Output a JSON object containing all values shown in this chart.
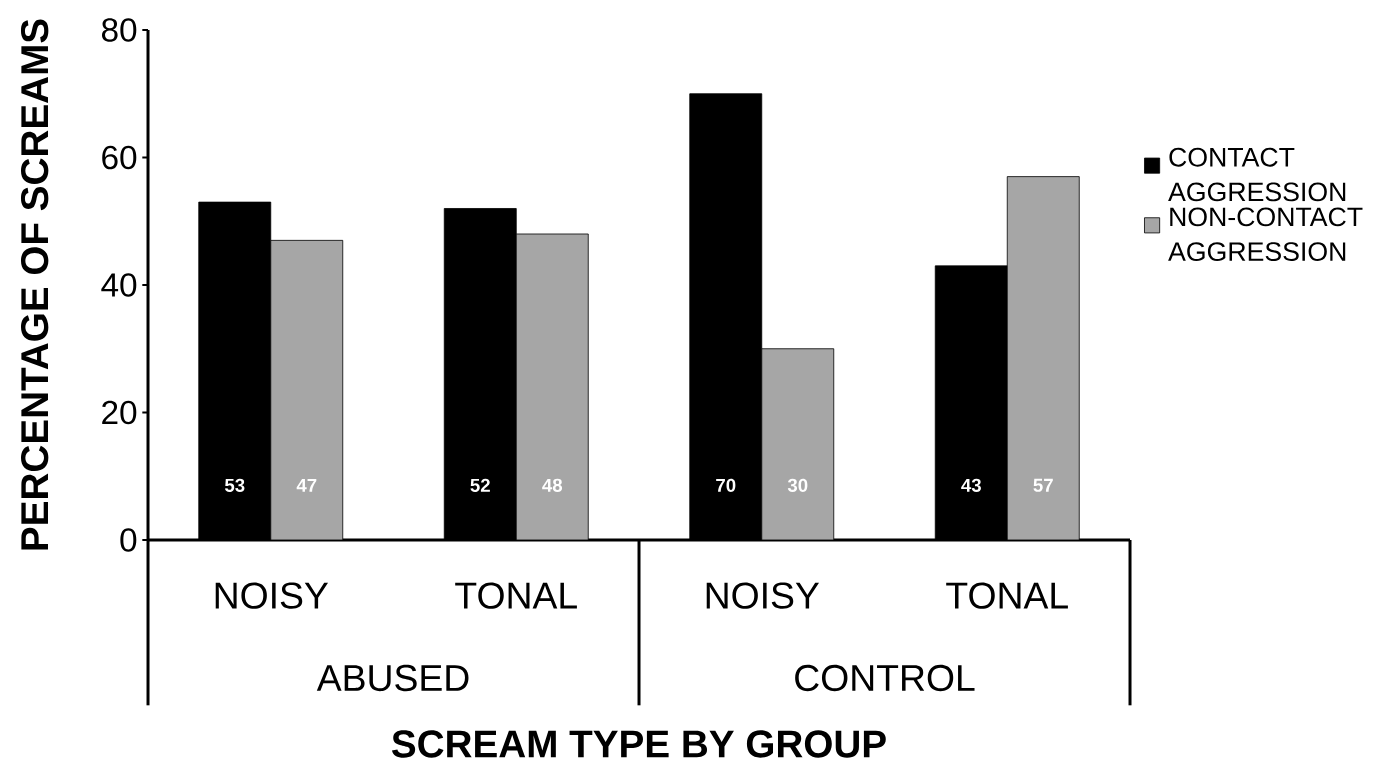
{
  "chart_data": {
    "type": "bar",
    "xlabel": "SCREAM TYPE BY GROUP",
    "ylabel": "PERCENTAGE OF SCREAMS",
    "categories": [
      "NOISY",
      "TONAL",
      "NOISY",
      "TONAL"
    ],
    "series": [
      {
        "name": "CONTACT AGGRESSION",
        "color": "#000000",
        "values": [
          53,
          52,
          70,
          43
        ]
      },
      {
        "name": "NON-CONTACT AGGRESSION",
        "color": "#a6a6a6",
        "values": [
          47,
          48,
          30,
          57
        ]
      }
    ],
    "ylim": [
      0,
      80
    ],
    "yticks": [
      0,
      20,
      40,
      60,
      80
    ],
    "data_labels": true,
    "legend": "right",
    "grid": false,
    "annotations": [
      "ABUSED",
      "CONTROL"
    ]
  }
}
